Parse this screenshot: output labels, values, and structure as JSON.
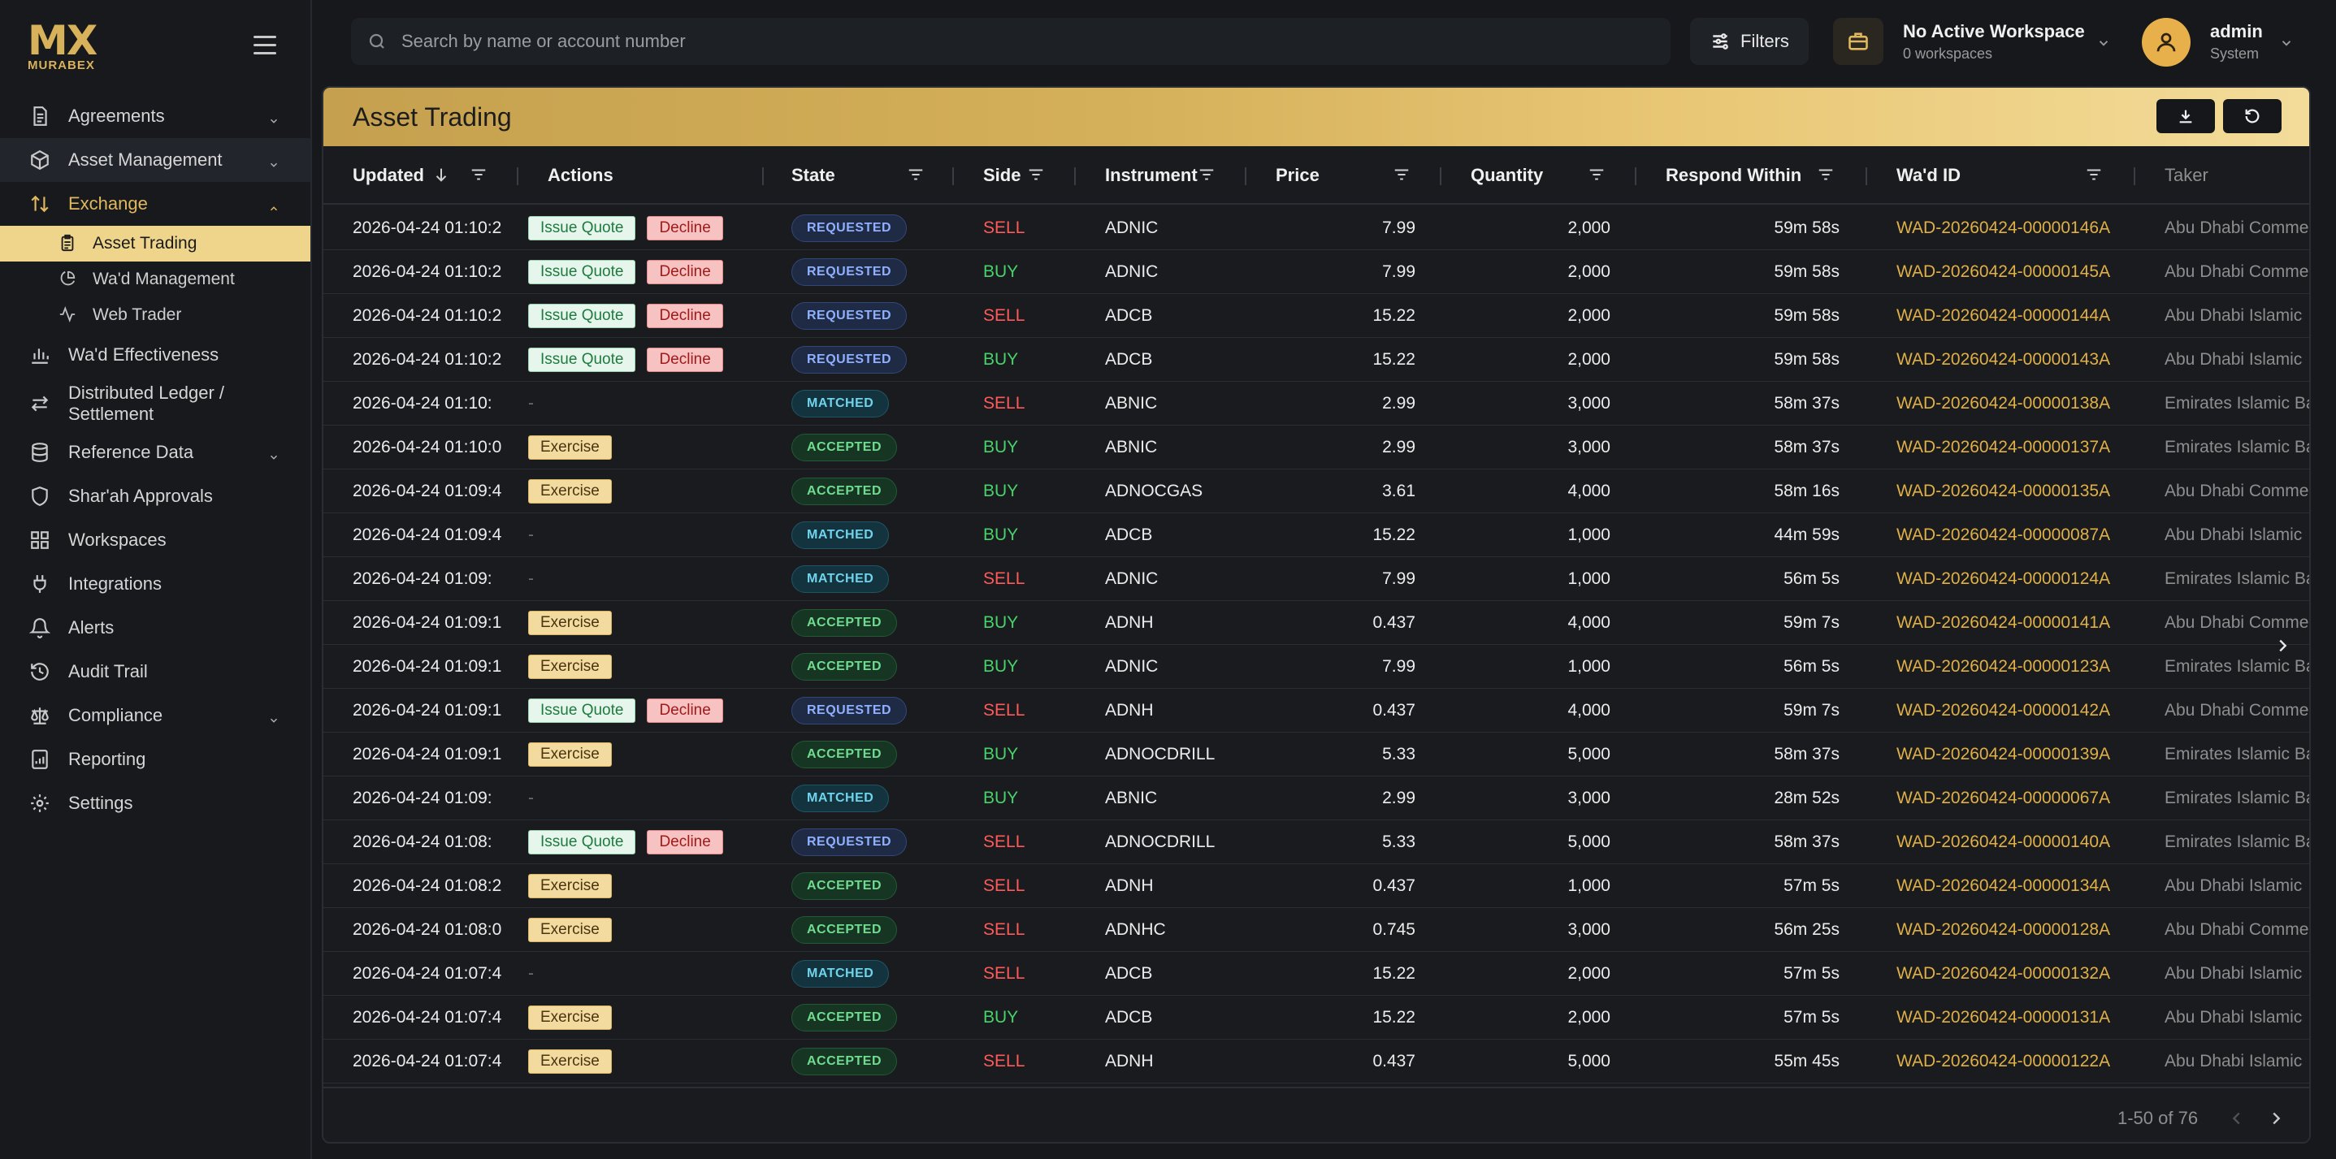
{
  "brand": {
    "logo": "MX",
    "name": "MURABEX"
  },
  "search": {
    "placeholder": "Search by name or account number"
  },
  "header": {
    "filters_label": "Filters",
    "workspace_title": "No Active Workspace",
    "workspace_sub": "0 workspaces",
    "user_name": "admin",
    "user_role": "System"
  },
  "sidebar": {
    "items": [
      {
        "label": "Agreements"
      },
      {
        "label": "Asset Management"
      },
      {
        "label": "Exchange"
      },
      {
        "label": "Asset Trading"
      },
      {
        "label": "Wa'd Management"
      },
      {
        "label": "Web Trader"
      },
      {
        "label": "Wa'd Effectiveness"
      },
      {
        "label": "Distributed Ledger /"
      },
      {
        "label": "Settlement"
      },
      {
        "label": "Reference Data"
      },
      {
        "label": "Shar'ah Approvals"
      },
      {
        "label": "Workspaces"
      },
      {
        "label": "Integrations"
      },
      {
        "label": "Alerts"
      },
      {
        "label": "Audit Trail"
      },
      {
        "label": "Compliance"
      },
      {
        "label": "Reporting"
      },
      {
        "label": "Settings"
      }
    ]
  },
  "panel": {
    "title": "Asset Trading"
  },
  "table": {
    "columns": [
      "Updated",
      "Actions",
      "State",
      "Side",
      "Instrument",
      "Price",
      "Quantity",
      "Respond Within",
      "Wa'd ID",
      "Taker"
    ],
    "action_labels": {
      "quote": "Issue Quote",
      "decline": "Decline",
      "exercise": "Exercise",
      "none": "-"
    },
    "rows": [
      {
        "updated": "2026-04-24 01:10:2",
        "actions": "quote",
        "state": "REQUESTED",
        "side": "SELL",
        "instrument": "ADNIC",
        "price": "7.99",
        "quantity": "2,000",
        "respond": "59m 58s",
        "wad_id": "WAD-20260424-00000146A",
        "taker": "Abu Dhabi Comme"
      },
      {
        "updated": "2026-04-24 01:10:2",
        "actions": "quote",
        "state": "REQUESTED",
        "side": "BUY",
        "instrument": "ADNIC",
        "price": "7.99",
        "quantity": "2,000",
        "respond": "59m 58s",
        "wad_id": "WAD-20260424-00000145A",
        "taker": "Abu Dhabi Comme"
      },
      {
        "updated": "2026-04-24 01:10:2",
        "actions": "quote",
        "state": "REQUESTED",
        "side": "SELL",
        "instrument": "ADCB",
        "price": "15.22",
        "quantity": "2,000",
        "respond": "59m 58s",
        "wad_id": "WAD-20260424-00000144A",
        "taker": "Abu Dhabi Islamic"
      },
      {
        "updated": "2026-04-24 01:10:2",
        "actions": "quote",
        "state": "REQUESTED",
        "side": "BUY",
        "instrument": "ADCB",
        "price": "15.22",
        "quantity": "2,000",
        "respond": "59m 58s",
        "wad_id": "WAD-20260424-00000143A",
        "taker": "Abu Dhabi Islamic"
      },
      {
        "updated": "2026-04-24 01:10:",
        "actions": "none",
        "state": "MATCHED",
        "side": "SELL",
        "instrument": "ABNIC",
        "price": "2.99",
        "quantity": "3,000",
        "respond": "58m 37s",
        "wad_id": "WAD-20260424-00000138A",
        "taker": "Emirates Islamic Ba"
      },
      {
        "updated": "2026-04-24 01:10:0",
        "actions": "exercise",
        "state": "ACCEPTED",
        "side": "BUY",
        "instrument": "ABNIC",
        "price": "2.99",
        "quantity": "3,000",
        "respond": "58m 37s",
        "wad_id": "WAD-20260424-00000137A",
        "taker": "Emirates Islamic Ba"
      },
      {
        "updated": "2026-04-24 01:09:4",
        "actions": "exercise",
        "state": "ACCEPTED",
        "side": "BUY",
        "instrument": "ADNOCGAS",
        "price": "3.61",
        "quantity": "4,000",
        "respond": "58m 16s",
        "wad_id": "WAD-20260424-00000135A",
        "taker": "Abu Dhabi Comme"
      },
      {
        "updated": "2026-04-24 01:09:4",
        "actions": "none",
        "state": "MATCHED",
        "side": "BUY",
        "instrument": "ADCB",
        "price": "15.22",
        "quantity": "1,000",
        "respond": "44m 59s",
        "wad_id": "WAD-20260424-00000087A",
        "taker": "Abu Dhabi Islamic"
      },
      {
        "updated": "2026-04-24 01:09:",
        "actions": "none",
        "state": "MATCHED",
        "side": "SELL",
        "instrument": "ADNIC",
        "price": "7.99",
        "quantity": "1,000",
        "respond": "56m 5s",
        "wad_id": "WAD-20260424-00000124A",
        "taker": "Emirates Islamic Ba"
      },
      {
        "updated": "2026-04-24 01:09:1",
        "actions": "exercise",
        "state": "ACCEPTED",
        "side": "BUY",
        "instrument": "ADNH",
        "price": "0.437",
        "quantity": "4,000",
        "respond": "59m 7s",
        "wad_id": "WAD-20260424-00000141A",
        "taker": "Abu Dhabi Comme"
      },
      {
        "updated": "2026-04-24 01:09:1",
        "actions": "exercise",
        "state": "ACCEPTED",
        "side": "BUY",
        "instrument": "ADNIC",
        "price": "7.99",
        "quantity": "1,000",
        "respond": "56m 5s",
        "wad_id": "WAD-20260424-00000123A",
        "taker": "Emirates Islamic Ba"
      },
      {
        "updated": "2026-04-24 01:09:1",
        "actions": "quote",
        "state": "REQUESTED",
        "side": "SELL",
        "instrument": "ADNH",
        "price": "0.437",
        "quantity": "4,000",
        "respond": "59m 7s",
        "wad_id": "WAD-20260424-00000142A",
        "taker": "Abu Dhabi Comme"
      },
      {
        "updated": "2026-04-24 01:09:1",
        "actions": "exercise",
        "state": "ACCEPTED",
        "side": "BUY",
        "instrument": "ADNOCDRILL",
        "price": "5.33",
        "quantity": "5,000",
        "respond": "58m 37s",
        "wad_id": "WAD-20260424-00000139A",
        "taker": "Emirates Islamic Ba"
      },
      {
        "updated": "2026-04-24 01:09:",
        "actions": "none",
        "state": "MATCHED",
        "side": "BUY",
        "instrument": "ABNIC",
        "price": "2.99",
        "quantity": "3,000",
        "respond": "28m 52s",
        "wad_id": "WAD-20260424-00000067A",
        "taker": "Emirates Islamic Ba"
      },
      {
        "updated": "2026-04-24 01:08:",
        "actions": "quote",
        "state": "REQUESTED",
        "side": "SELL",
        "instrument": "ADNOCDRILL",
        "price": "5.33",
        "quantity": "5,000",
        "respond": "58m 37s",
        "wad_id": "WAD-20260424-00000140A",
        "taker": "Emirates Islamic Ba"
      },
      {
        "updated": "2026-04-24 01:08:2",
        "actions": "exercise",
        "state": "ACCEPTED",
        "side": "SELL",
        "instrument": "ADNH",
        "price": "0.437",
        "quantity": "1,000",
        "respond": "57m 5s",
        "wad_id": "WAD-20260424-00000134A",
        "taker": "Abu Dhabi Islamic"
      },
      {
        "updated": "2026-04-24 01:08:0",
        "actions": "exercise",
        "state": "ACCEPTED",
        "side": "SELL",
        "instrument": "ADNHC",
        "price": "0.745",
        "quantity": "3,000",
        "respond": "56m 25s",
        "wad_id": "WAD-20260424-00000128A",
        "taker": "Abu Dhabi Comme"
      },
      {
        "updated": "2026-04-24 01:07:4",
        "actions": "none",
        "state": "MATCHED",
        "side": "SELL",
        "instrument": "ADCB",
        "price": "15.22",
        "quantity": "2,000",
        "respond": "57m 5s",
        "wad_id": "WAD-20260424-00000132A",
        "taker": "Abu Dhabi Islamic"
      },
      {
        "updated": "2026-04-24 01:07:4",
        "actions": "exercise",
        "state": "ACCEPTED",
        "side": "BUY",
        "instrument": "ADCB",
        "price": "15.22",
        "quantity": "2,000",
        "respond": "57m 5s",
        "wad_id": "WAD-20260424-00000131A",
        "taker": "Abu Dhabi Islamic"
      },
      {
        "updated": "2026-04-24 01:07:4",
        "actions": "exercise",
        "state": "ACCEPTED",
        "side": "SELL",
        "instrument": "ADNH",
        "price": "0.437",
        "quantity": "5,000",
        "respond": "55m 45s",
        "wad_id": "WAD-20260424-00000122A",
        "taker": "Abu Dhabi Islamic"
      }
    ]
  },
  "pagination": {
    "text": "1-50 of 76"
  },
  "colors": {
    "accent": "#e0b85e",
    "sell": "#ff5a5a",
    "buy": "#48d26a",
    "wad_id": "#e0b047"
  }
}
